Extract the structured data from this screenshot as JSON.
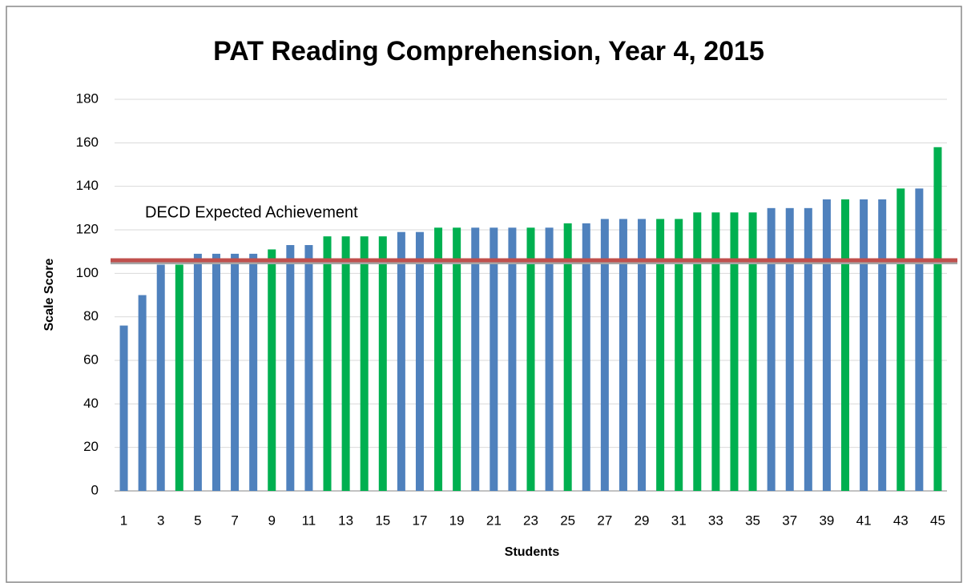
{
  "chart_data": {
    "type": "bar",
    "title": "PAT Reading Comprehension, Year 4, 2015",
    "x_label": "Students",
    "y_label": "Scale Score",
    "categories": [
      1,
      null,
      3,
      null,
      5,
      null,
      7,
      null,
      9,
      null,
      11,
      null,
      13,
      null,
      15,
      null,
      17,
      null,
      19,
      null,
      21,
      null,
      23,
      null,
      25,
      null,
      27,
      null,
      29,
      null,
      31,
      null,
      33,
      null,
      35,
      null,
      37,
      null,
      39,
      null,
      41,
      null,
      43,
      null,
      45
    ],
    "values": [
      76,
      90,
      104,
      104,
      109,
      109,
      109,
      109,
      111,
      113,
      113,
      117,
      117,
      117,
      117,
      119,
      119,
      121,
      121,
      121,
      121,
      121,
      121,
      121,
      123,
      123,
      125,
      125,
      125,
      125,
      125,
      128,
      128,
      128,
      128,
      130,
      130,
      130,
      134,
      134,
      134,
      134,
      139,
      139,
      158
    ],
    "colors": [
      "#4f81bd",
      "#4f81bd",
      "#4f81bd",
      "#00b050",
      "#4f81bd",
      "#4f81bd",
      "#4f81bd",
      "#4f81bd",
      "#00b050",
      "#4f81bd",
      "#4f81bd",
      "#00b050",
      "#00b050",
      "#00b050",
      "#00b050",
      "#4f81bd",
      "#4f81bd",
      "#00b050",
      "#00b050",
      "#4f81bd",
      "#4f81bd",
      "#4f81bd",
      "#00b050",
      "#4f81bd",
      "#00b050",
      "#4f81bd",
      "#4f81bd",
      "#4f81bd",
      "#4f81bd",
      "#00b050",
      "#00b050",
      "#00b050",
      "#00b050",
      "#00b050",
      "#00b050",
      "#4f81bd",
      "#4f81bd",
      "#4f81bd",
      "#4f81bd",
      "#00b050",
      "#4f81bd",
      "#4f81bd",
      "#00b050",
      "#4f81bd",
      "#00b050"
    ],
    "reference_line": {
      "label": "DECD Expected Achievement",
      "value": 106,
      "color": "#c0504d"
    },
    "ylim": [
      0,
      180
    ],
    "yticks": [
      0,
      20,
      40,
      60,
      80,
      100,
      120,
      140,
      160,
      180
    ],
    "grid": true
  }
}
